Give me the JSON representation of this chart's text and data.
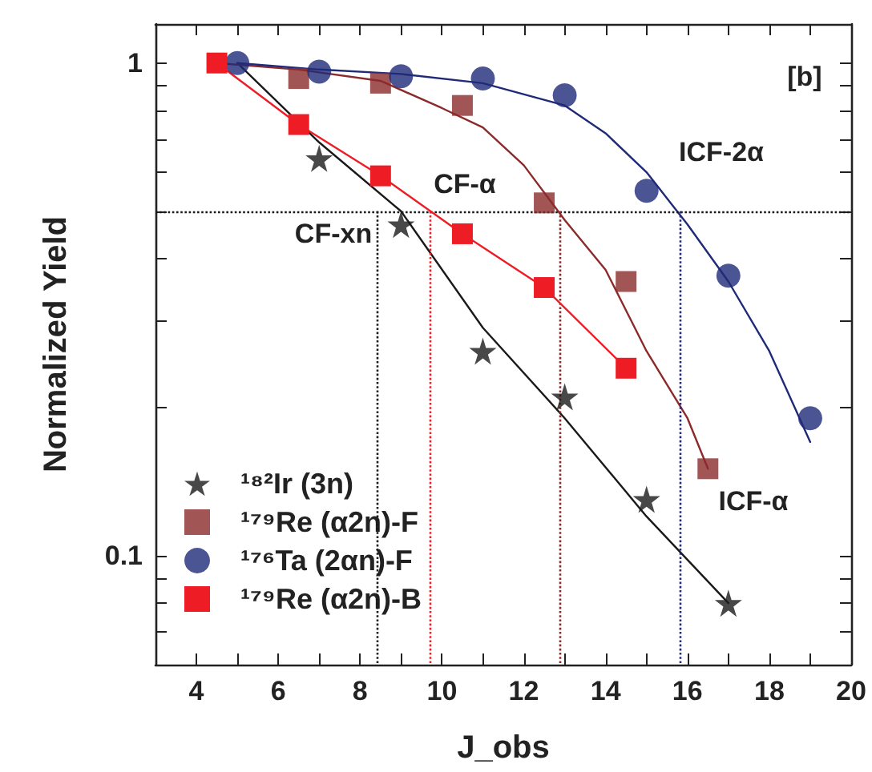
{
  "chart_data": {
    "type": "scatter",
    "xlabel": "J_obs",
    "ylabel": "Normalized Yield",
    "log": "y",
    "xlim": [
      3,
      20
    ],
    "ylim": [
      0.06,
      1.2
    ],
    "xticks": [
      4,
      {
        "value": 5,
        "label": null
      },
      6,
      {
        "value": 7,
        "label": null
      },
      8,
      {
        "value": 9,
        "label": null
      },
      10,
      {
        "value": 11,
        "label": null
      },
      12,
      {
        "value": 13,
        "label": null
      },
      14,
      {
        "value": 15,
        "label": null
      },
      16,
      {
        "value": 17,
        "label": null
      },
      18,
      {
        "value": 19,
        "label": null
      },
      20
    ],
    "yticks": [
      {
        "value": 0.07,
        "label": null
      },
      {
        "value": 0.08,
        "label": null
      },
      {
        "value": 0.09,
        "label": null
      },
      0.1,
      {
        "value": 0.2,
        "label": null
      },
      {
        "value": 0.3,
        "label": null
      },
      {
        "value": 0.4,
        "label": null
      },
      {
        "value": 0.5,
        "label": null
      },
      {
        "value": 0.6,
        "label": null
      },
      {
        "value": 0.7,
        "label": null
      },
      {
        "value": 0.8,
        "label": null
      },
      {
        "value": 0.9,
        "label": null
      },
      1
    ],
    "grid": false,
    "legend": "bottom left",
    "series": [
      {
        "name": "¹⁸²Ir (3n)",
        "marker": "star",
        "color": "#1a1a1a",
        "x": [
          7,
          9,
          11,
          13,
          15,
          17
        ],
        "values": [
          0.64,
          0.47,
          0.26,
          0.21,
          0.13,
          0.08
        ]
      },
      {
        "name": "¹⁷⁹Re (α2n)-F",
        "marker": "square",
        "color": "#8b2a2a",
        "x": [
          6.5,
          8.5,
          10.5,
          12.5,
          14.5,
          16.5
        ],
        "values": [
          0.93,
          0.91,
          0.82,
          0.52,
          0.36,
          0.15
        ]
      },
      {
        "name": "¹⁷⁶Ta (2αn)-F",
        "marker": "circle",
        "color": "#1f2a78",
        "x": [
          5,
          7,
          9,
          11,
          13,
          15,
          17,
          19
        ],
        "values": [
          1,
          0.96,
          0.94,
          0.93,
          0.86,
          0.55,
          0.37,
          0.19
        ]
      },
      {
        "name": "¹⁷⁹Re (α2n)-B",
        "type": "line",
        "marker": "square",
        "color": "#ee1c24",
        "x": [
          4.5,
          6.5,
          8.5,
          10.5,
          12.5,
          14.5
        ],
        "values": [
          1,
          0.75,
          0.59,
          0.45,
          0.35,
          0.24
        ]
      },
      {
        "type": "line",
        "marker": "none",
        "color": "#1a1a1a",
        "x": [
          5,
          7,
          9,
          11,
          13,
          15,
          17
        ],
        "values": [
          1,
          0.69,
          0.5,
          0.29,
          0.19,
          0.12,
          0.08
        ]
      },
      {
        "type": "line",
        "marker": "none",
        "color": "#8b2a2a",
        "x": [
          4.5,
          6.5,
          8.5,
          10,
          11,
          12,
          13,
          14,
          15,
          16,
          16.5
        ],
        "values": [
          1,
          0.97,
          0.92,
          0.81,
          0.74,
          0.62,
          0.48,
          0.38,
          0.26,
          0.19,
          0.15
        ]
      },
      {
        "type": "line",
        "marker": "none",
        "color": "#1f2a78",
        "x": [
          5,
          7,
          9,
          11,
          13,
          14,
          15,
          16,
          17,
          18,
          19
        ],
        "values": [
          1,
          0.97,
          0.95,
          0.91,
          0.82,
          0.72,
          0.6,
          0.47,
          0.36,
          0.26,
          0.17
        ]
      }
    ],
    "ref_lines": [
      {
        "axis": "y",
        "value": 0.5,
        "color": "#1a1a1a",
        "line_style": "dotted"
      },
      {
        "axis": "x",
        "value": 8.4,
        "color": "#1a1a1a",
        "line_style": "dotted"
      },
      {
        "axis": "x",
        "value": 9.7,
        "color": "#ee1c24",
        "line_style": "dotted"
      },
      {
        "axis": "x",
        "value": 12.9,
        "color": "#8b2a2a",
        "line_style": "dotted"
      },
      {
        "axis": "x",
        "value": 15.8,
        "color": "#1f2a78",
        "line_style": "dotted"
      }
    ],
    "annotations": [
      "[b]",
      "CF-xn",
      "CF-α",
      "ICF-2α",
      "ICF-α"
    ]
  }
}
